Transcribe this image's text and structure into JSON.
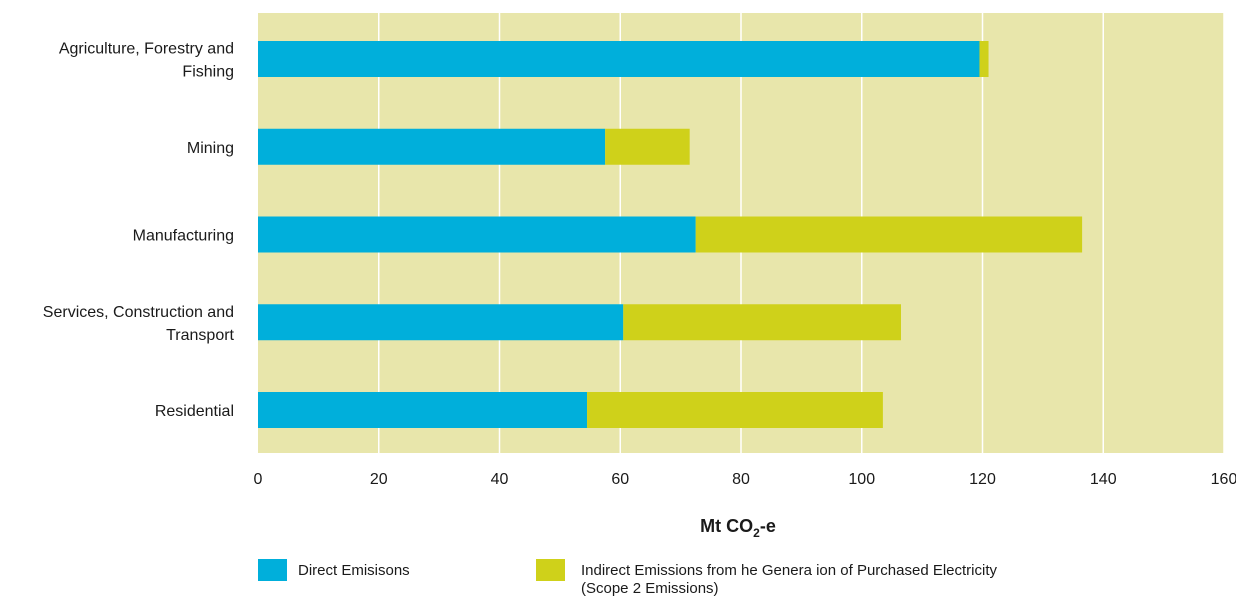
{
  "colors": {
    "plot_background": "#e8e6ab",
    "gridline": "#ffffff",
    "direct": "#00afdb",
    "indirect": "#cfd11a"
  },
  "chart_data": {
    "type": "bar",
    "orientation": "horizontal",
    "stacked": true,
    "title": "",
    "xlabel": {
      "main": "Mt CO",
      "subscript": "2",
      "suffix": "-e"
    },
    "ylabel": "",
    "xlim": [
      0,
      160
    ],
    "x_ticks": [
      0,
      20,
      40,
      60,
      80,
      100,
      120,
      140,
      160
    ],
    "grid": "vertical",
    "legend_position": "bottom",
    "categories": [
      [
        "Agriculture, Forestry and",
        "Fishing"
      ],
      [
        "Mining"
      ],
      [
        "Manufacturing"
      ],
      [
        "Services, Construction and",
        "Transport"
      ],
      [
        "Residential"
      ]
    ],
    "series": [
      {
        "name": "Direct Emisisons",
        "color_key": "direct",
        "values": [
          119.5,
          57.5,
          72.5,
          60.5,
          54.5
        ]
      },
      {
        "name": [
          "Indirect Emissions from  he Genera ion of Purchased Electricity",
          "(Scope 2 Emissions)"
        ],
        "color_key": "indirect",
        "values": [
          1.5,
          14,
          64,
          46,
          49
        ]
      }
    ]
  }
}
